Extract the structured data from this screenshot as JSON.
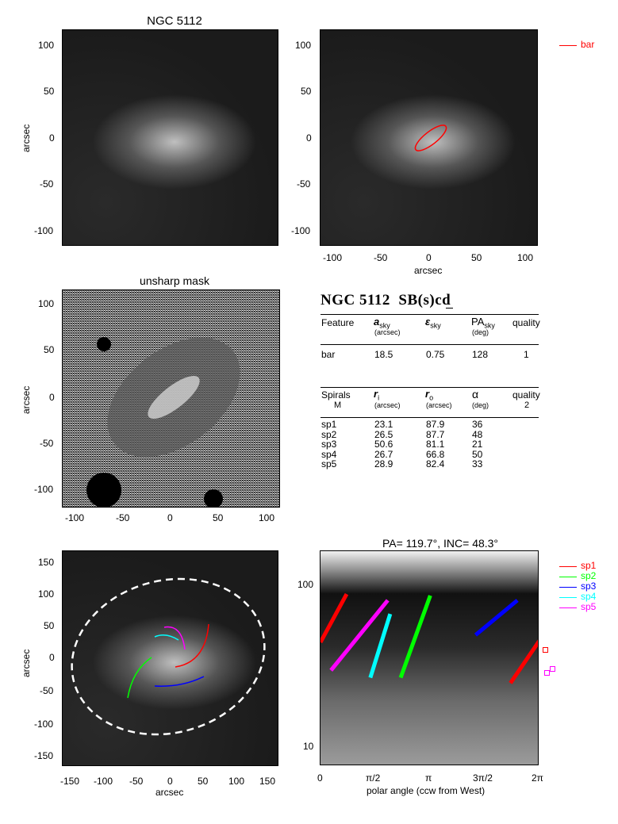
{
  "panels": {
    "top_left_title": "NGC 5112",
    "mid_left_title": "unsharp mask",
    "bottom_right_title": "PA= 119.7°, INC=  48.3°",
    "ylabel": "arcsec",
    "xlabel": "arcsec",
    "polar_xlabel": "polar angle (ccw from West)"
  },
  "ticks": {
    "img_y": [
      "100",
      "50",
      "0",
      "-50",
      "-100"
    ],
    "img_x": [
      "-100",
      "-50",
      "0",
      "50",
      "100"
    ],
    "big_y": [
      "150",
      "100",
      "50",
      "0",
      "-50",
      "-100",
      "-150"
    ],
    "big_x": [
      "-150",
      "-100",
      "-50",
      "0",
      "50",
      "100",
      "150"
    ],
    "polar_y": [
      "100",
      "10"
    ],
    "polar_x": [
      "0",
      "π/2",
      "π",
      "3π/2",
      "2π"
    ]
  },
  "legend_top": {
    "label": "bar",
    "color": "#ff0000"
  },
  "legend_bottom": [
    {
      "label": "sp1",
      "color": "#ff0000"
    },
    {
      "label": "sp2",
      "color": "#00ff00"
    },
    {
      "label": "sp3",
      "color": "#0000ff"
    },
    {
      "label": "sp4",
      "color": "#00ffff"
    },
    {
      "label": "sp5",
      "color": "#ff00ff"
    }
  ],
  "table": {
    "title": "NGC 5112  SB(s)cd",
    "bar_header": {
      "feature": "Feature",
      "a": "a",
      "a_sub": "sky",
      "a_unit": "(arcsec)",
      "e": "ε",
      "e_sub": "sky",
      "pa": "PA",
      "pa_sub": "sky",
      "pa_unit": "(deg)",
      "quality": "quality"
    },
    "bar_row": {
      "feature": "bar",
      "a": "18.5",
      "e": "0.75",
      "pa": "128",
      "quality": "1"
    },
    "sp_header": {
      "feature": "Spirals",
      "m": "M",
      "ri": "r",
      "ri_sub": "i",
      "ri_unit": "(arcsec)",
      "ro": "r",
      "ro_sub": "o",
      "ro_unit": "(arcsec)",
      "alpha": "α",
      "alpha_unit": "(deg)",
      "quality": "quality",
      "quality_val": "2"
    },
    "sp_rows": [
      {
        "name": "sp1",
        "ri": "23.1",
        "ro": "87.9",
        "alpha": "36"
      },
      {
        "name": "sp2",
        "ri": "26.5",
        "ro": "87.7",
        "alpha": "48"
      },
      {
        "name": "sp3",
        "ri": "50.6",
        "ro": "81.1",
        "alpha": "21"
      },
      {
        "name": "sp4",
        "ri": "26.7",
        "ro": "66.8",
        "alpha": "50"
      },
      {
        "name": "sp5",
        "ri": "28.9",
        "ro": "82.4",
        "alpha": "33"
      }
    ]
  },
  "chart_data": {
    "type": "line",
    "title": "PA= 119.7°, INC=  48.3°",
    "xlabel": "polar angle (ccw from West)",
    "ylabel": "",
    "xlim": [
      0,
      6.2832
    ],
    "ylim": [
      7,
      170
    ],
    "yscale": "log",
    "series": [
      {
        "name": "sp1",
        "color": "#ff0000",
        "segments": [
          [
            [
              0.0,
              44
            ],
            [
              0.75,
              90
            ]
          ],
          [
            [
              5.45,
              24
            ],
            [
              6.28,
              45
            ]
          ]
        ]
      },
      {
        "name": "sp2",
        "color": "#00ff00",
        "segments": [
          [
            [
              2.3,
              26
            ],
            [
              3.15,
              88
            ]
          ]
        ]
      },
      {
        "name": "sp3",
        "color": "#0000ff",
        "segments": [
          [
            [
              4.45,
              49
            ],
            [
              5.65,
              82
            ]
          ]
        ]
      },
      {
        "name": "sp4",
        "color": "#00ffff",
        "segments": [
          [
            [
              1.43,
              26
            ],
            [
              2.0,
              67
            ]
          ]
        ]
      },
      {
        "name": "sp5",
        "color": "#ff00ff",
        "segments": [
          [
            [
              0.3,
              29
            ],
            [
              1.93,
              82
            ]
          ]
        ]
      }
    ]
  }
}
